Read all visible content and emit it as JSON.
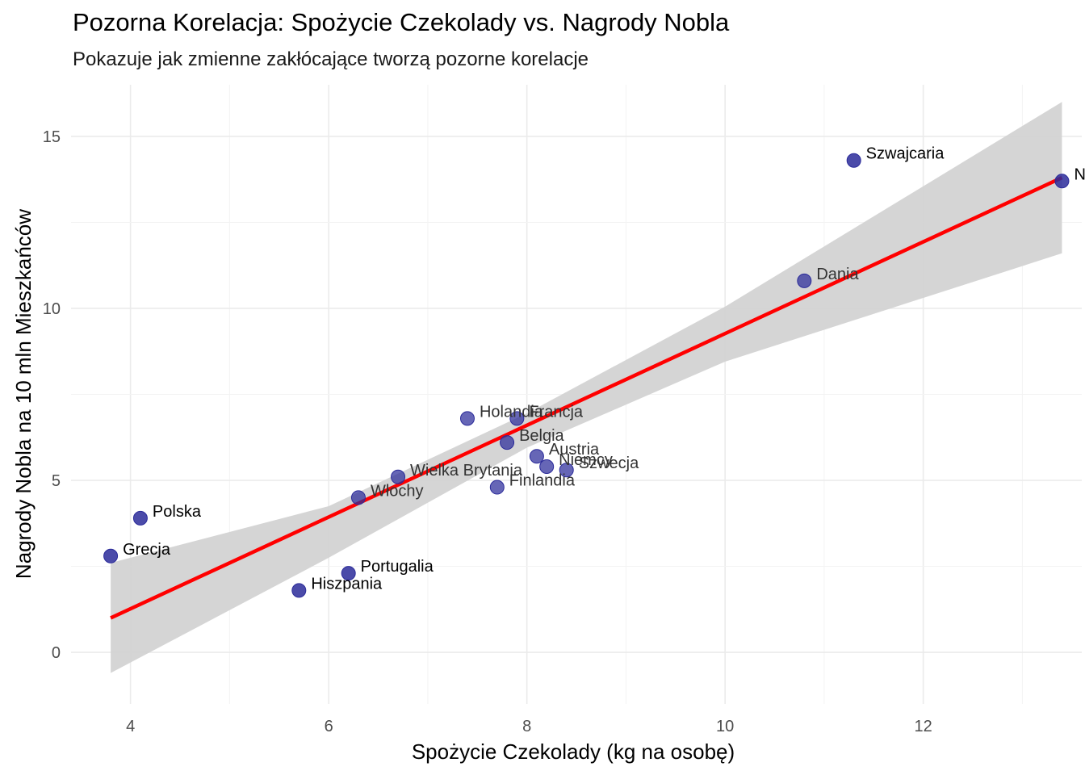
{
  "chart_data": {
    "type": "scatter",
    "title": "Pozorna Korelacja: Spożycie Czekolady vs. Nagrody Nobla",
    "subtitle": "Pokazuje jak zmienne zakłócające tworzą pozorne korelacje",
    "xlabel": "Spożycie Czekolady (kg na osobę)",
    "ylabel": "Nagrody Nobla na 10 mln Mieszkańców",
    "xlim": [
      3.4,
      13.6
    ],
    "ylim": [
      -1.5,
      16.5
    ],
    "x_ticks": [
      4,
      6,
      8,
      10,
      12
    ],
    "y_ticks": [
      0,
      5,
      10,
      15
    ],
    "grid": true,
    "point_color": "#2b2b9a",
    "trend_color": "#ff0000",
    "band_color": "#d3d3d3",
    "points": [
      {
        "label": "Szwajcaria",
        "x": 11.3,
        "y": 14.3
      },
      {
        "label": "Nor",
        "x": 13.4,
        "y": 13.7
      },
      {
        "label": "Dania",
        "x": 10.8,
        "y": 10.8
      },
      {
        "label": "Holandia",
        "x": 7.4,
        "y": 6.8
      },
      {
        "label": "Francja",
        "x": 7.9,
        "y": 6.8
      },
      {
        "label": "Belgia",
        "x": 7.8,
        "y": 6.1
      },
      {
        "label": "Austria",
        "x": 8.1,
        "y": 5.7
      },
      {
        "label": "Niemcy",
        "x": 8.2,
        "y": 5.4
      },
      {
        "label": "Szwecja",
        "x": 8.4,
        "y": 5.3
      },
      {
        "label": "Wielka Brytania",
        "x": 6.7,
        "y": 5.1
      },
      {
        "label": "Finlandia",
        "x": 7.7,
        "y": 4.8
      },
      {
        "label": "Włochy",
        "x": 6.3,
        "y": 4.5
      },
      {
        "label": "Polska",
        "x": 4.1,
        "y": 3.9
      },
      {
        "label": "Grecja",
        "x": 3.8,
        "y": 2.8
      },
      {
        "label": "Portugalia",
        "x": 6.2,
        "y": 2.3
      },
      {
        "label": "Hiszpania",
        "x": 5.7,
        "y": 1.8
      }
    ],
    "trend_line": {
      "x": [
        3.8,
        13.4
      ],
      "y": [
        1.0,
        13.8
      ]
    },
    "confidence_band": {
      "x": [
        3.8,
        6,
        8,
        10,
        13.4
      ],
      "upper": [
        2.6,
        4.25,
        6.95,
        10.05,
        16.0
      ],
      "lower": [
        -0.6,
        2.75,
        5.95,
        8.45,
        11.6
      ]
    }
  }
}
